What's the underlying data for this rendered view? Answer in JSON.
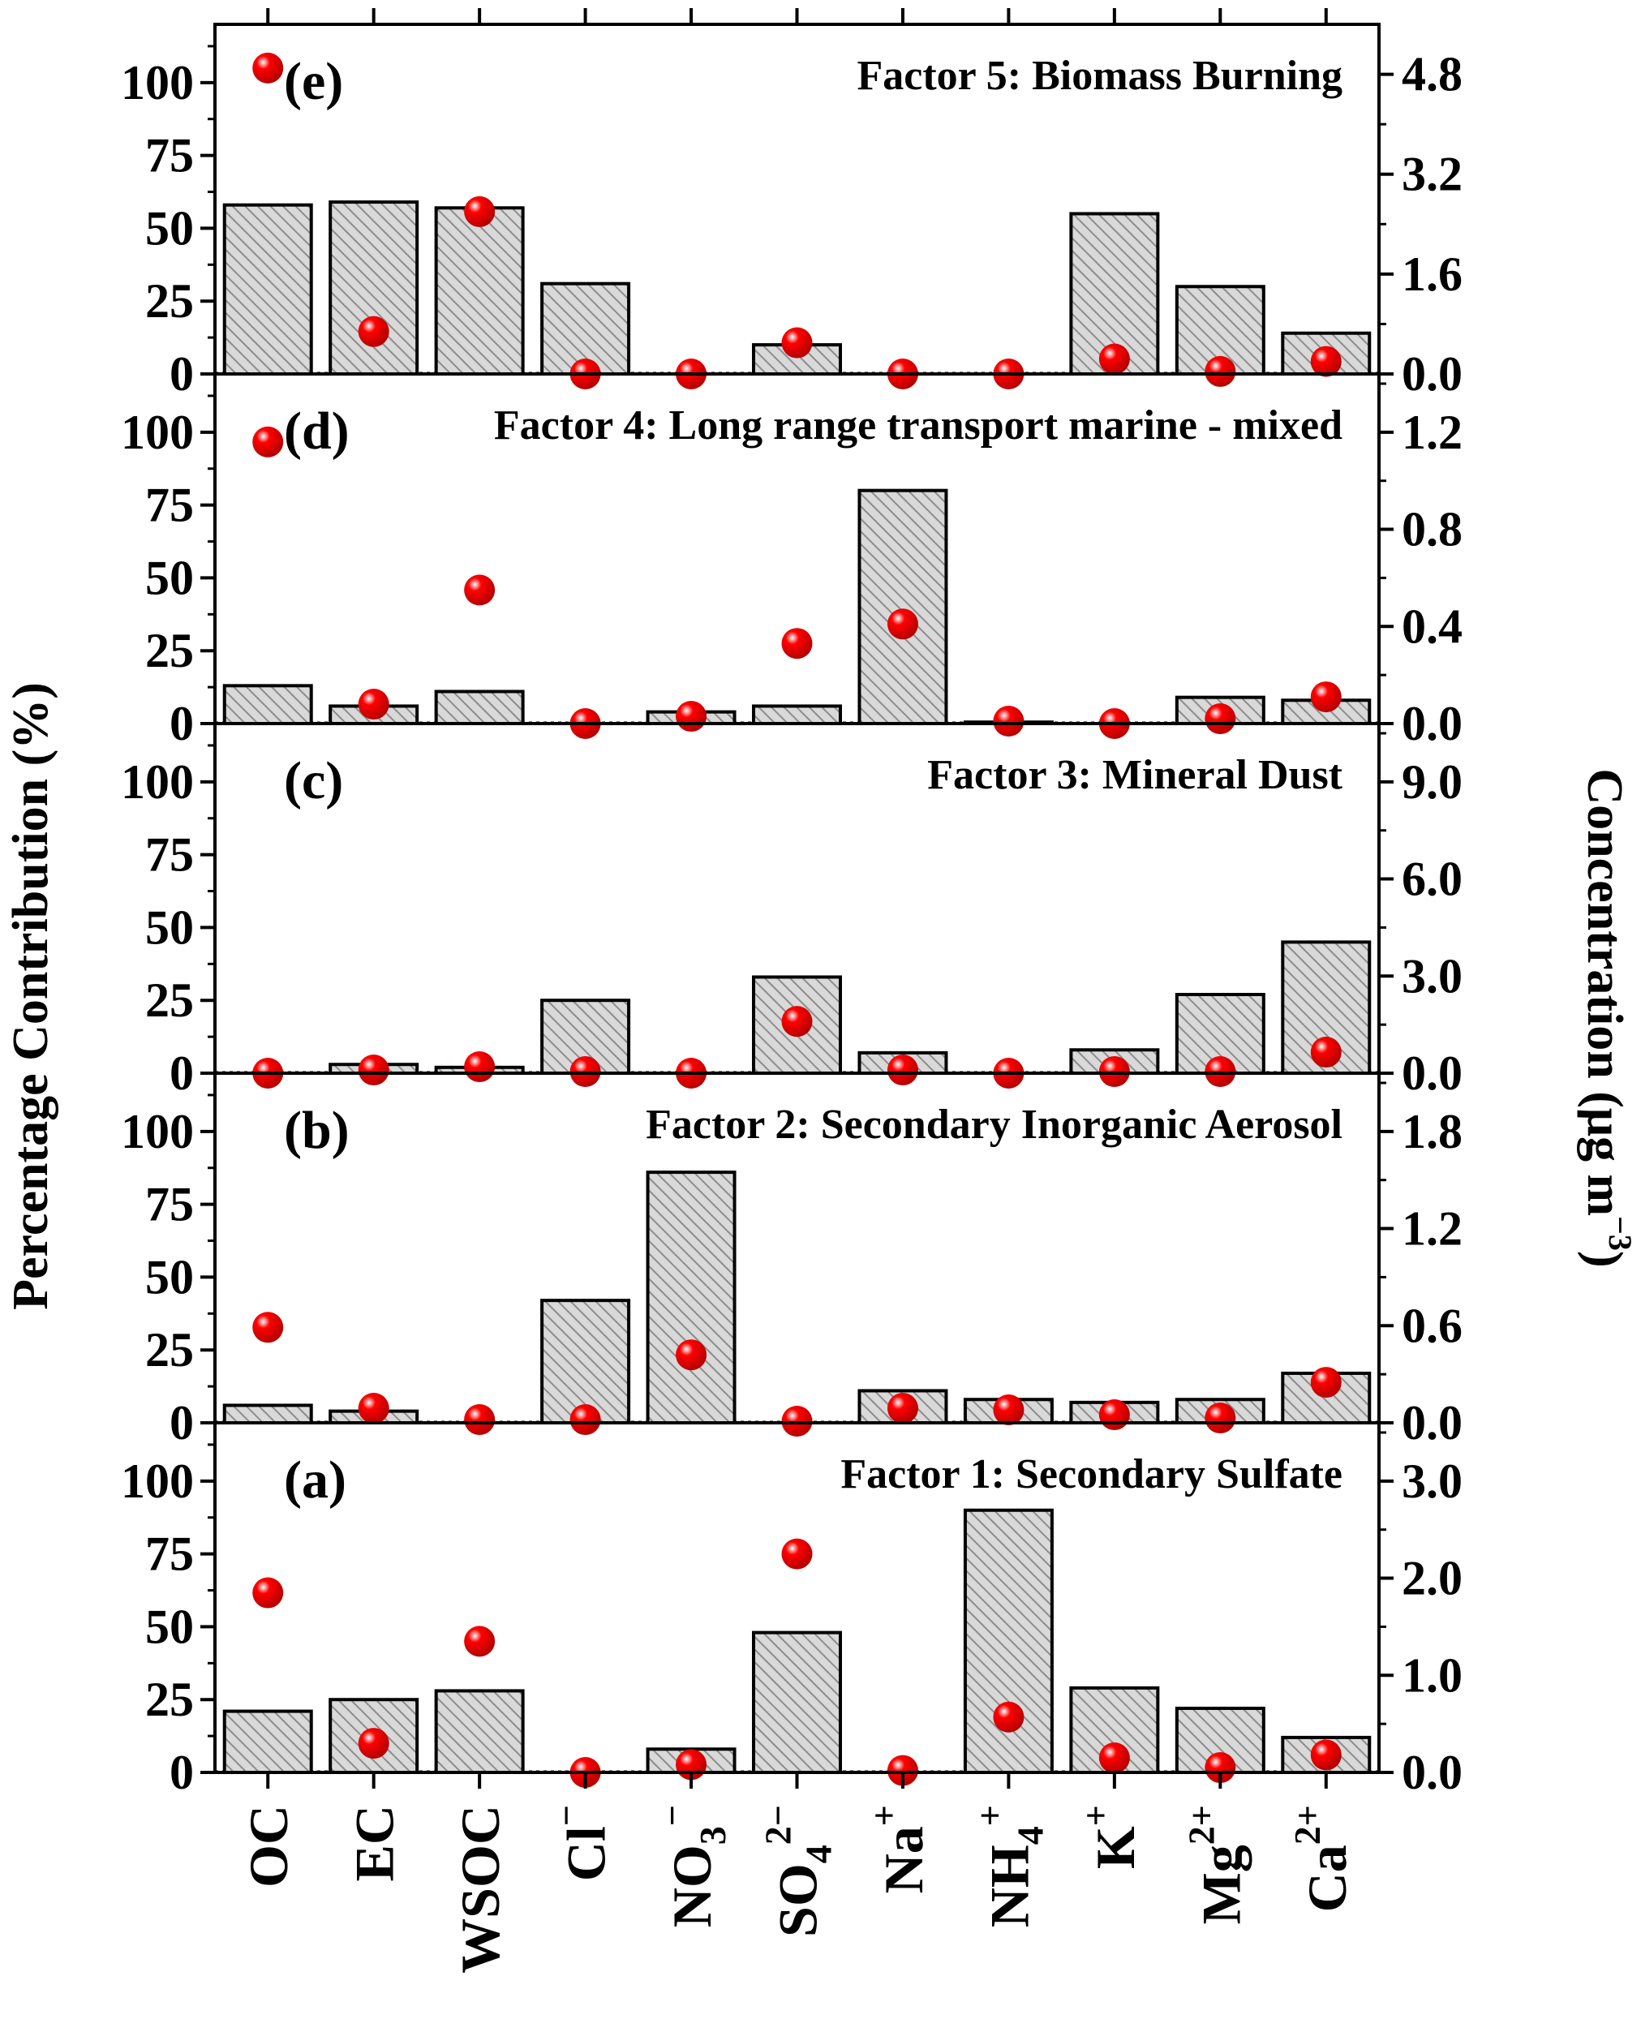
{
  "axis_labels": {
    "left": "Percentage Contribution (%)",
    "right_main": "Concentration (μg m",
    "right_sup": "−3",
    "right_close": ")"
  },
  "x_ticks": [
    {
      "base": "OC",
      "sub": "",
      "sup": ""
    },
    {
      "base": "EC",
      "sub": "",
      "sup": ""
    },
    {
      "base": "WSOC",
      "sub": "",
      "sup": ""
    },
    {
      "base": "Cl",
      "sub": "",
      "sup": "−"
    },
    {
      "base": "NO",
      "sub": "3",
      "sup": "−"
    },
    {
      "base": "SO",
      "sub": "4",
      "sup": "2−"
    },
    {
      "base": "Na",
      "sub": "",
      "sup": "+"
    },
    {
      "base": "NH",
      "sub": "4",
      "sup": "+"
    },
    {
      "base": "K",
      "sub": "",
      "sup": "+"
    },
    {
      "base": "Mg",
      "sub": "",
      "sup": "2+"
    },
    {
      "base": "Ca",
      "sub": "",
      "sup": "2+"
    }
  ],
  "colors": {
    "bar_fill": "#d9d9d9",
    "hatch": "#8c8c8c",
    "marker": "#ff0000",
    "marker_highlight": "#ffffff"
  },
  "chart_data": {
    "type": "bar",
    "categories": [
      "OC",
      "EC",
      "WSOC",
      "Cl−",
      "NO3−",
      "SO42−",
      "Na+",
      "NH4+",
      "K+",
      "Mg2+",
      "Ca2+"
    ],
    "left_axis": {
      "ylim": [
        0,
        120
      ],
      "ticks": [
        "0",
        "25",
        "50",
        "75",
        "100"
      ]
    },
    "legend": "none",
    "grid": false,
    "panels": [
      {
        "label": "(e)",
        "title": "Factor 5: Biomass Burning",
        "percent": [
          58,
          59,
          57,
          31,
          0,
          10,
          0,
          0,
          55,
          30,
          14
        ],
        "concentration": [
          4.9,
          0.68,
          2.6,
          0.0,
          0.0,
          0.5,
          0.0,
          0.0,
          0.24,
          0.04,
          0.2
        ],
        "right_ylim": [
          0,
          5.6
        ],
        "right_ticks": [
          "0.0",
          "1.6",
          "3.2",
          "4.8"
        ]
      },
      {
        "label": "(d)",
        "title": "Factor 4: Long range transport marine - mixed",
        "percent": [
          13,
          6,
          11,
          0,
          4,
          6,
          80,
          0.5,
          0,
          9,
          8
        ],
        "concentration": [
          1.16,
          0.08,
          0.55,
          0.0,
          0.03,
          0.33,
          0.41,
          0.01,
          0.0,
          0.02,
          0.11
        ],
        "right_ylim": [
          0,
          1.44
        ],
        "right_ticks": [
          "0.0",
          "0.4",
          "0.8",
          "1.2"
        ]
      },
      {
        "label": "(c)",
        "title": "Factor 3: Mineral Dust",
        "percent": [
          0,
          3,
          2,
          25,
          0,
          33,
          7,
          0,
          8,
          27,
          45
        ],
        "concentration": [
          0.0,
          0.1,
          0.2,
          0.05,
          0.0,
          1.6,
          0.1,
          0.0,
          0.05,
          0.05,
          0.65
        ],
        "right_ylim": [
          0,
          10.8
        ],
        "right_ticks": [
          "0.0",
          "3.0",
          "6.0",
          "9.0"
        ]
      },
      {
        "label": "(b)",
        "title": "Factor 2: Secondary Inorganic Aerosol",
        "percent": [
          6,
          4,
          0,
          42,
          86,
          0,
          11,
          8,
          7,
          8,
          17
        ],
        "concentration": [
          0.59,
          0.09,
          0.02,
          0.02,
          0.42,
          0.01,
          0.09,
          0.08,
          0.05,
          0.03,
          0.25
        ],
        "right_ylim": [
          0,
          2.16
        ],
        "right_ticks": [
          "0.0",
          "0.6",
          "1.2",
          "1.8"
        ]
      },
      {
        "label": "(a)",
        "title": "Factor 1: Secondary Sulfate",
        "percent": [
          21,
          25,
          28,
          0,
          8,
          48,
          0,
          90,
          29,
          22,
          12
        ],
        "concentration": [
          1.85,
          0.3,
          1.35,
          0.0,
          0.08,
          2.25,
          0.02,
          0.57,
          0.15,
          0.05,
          0.18
        ],
        "right_ylim": [
          0,
          3.6
        ],
        "right_ticks": [
          "0.0",
          "1.0",
          "2.0",
          "3.0"
        ]
      }
    ]
  }
}
